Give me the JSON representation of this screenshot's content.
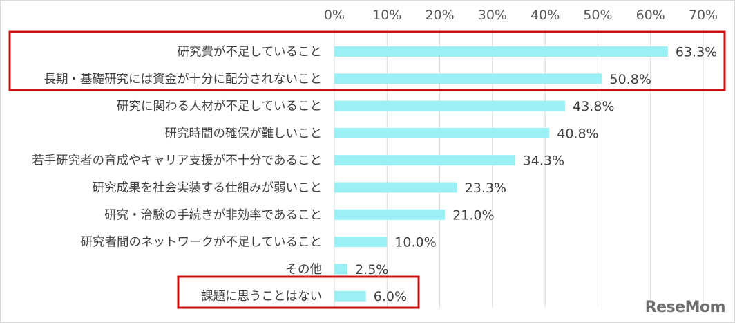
{
  "chart_data": {
    "type": "bar",
    "orientation": "horizontal",
    "categories": [
      "研究費が不足していること",
      "長期・基礎研究には資金が十分に配分されないこと",
      "研究に関わる人材が不足していること",
      "研究時間の確保が難しいこと",
      "若手研究者の育成やキャリア支援が不十分であること",
      "研究成果を社会実装する仕組みが弱いこと",
      "研究・治験の手続きが非効率であること",
      "研究者間のネットワークが不足していること",
      "その他",
      "課題に思うことはない"
    ],
    "values": [
      63.3,
      50.8,
      43.8,
      40.8,
      34.3,
      23.3,
      21.0,
      10.0,
      2.5,
      6.0
    ],
    "value_labels": [
      "63.3%",
      "50.8%",
      "43.8%",
      "40.8%",
      "34.3%",
      "23.3%",
      "21.0%",
      "10.0%",
      "2.5%",
      "6.0%"
    ],
    "xticks": [
      0,
      10,
      20,
      30,
      40,
      50,
      60,
      70
    ],
    "xtick_labels": [
      "0%",
      "10%",
      "20%",
      "30%",
      "40%",
      "50%",
      "60%",
      "70%"
    ],
    "xlim": [
      0,
      70
    ],
    "xaxis_position": "top",
    "grid": true,
    "title": "",
    "xlabel": "",
    "ylabel": "",
    "bar_color": "#9bf0f5",
    "highlight_color": "#cc1111",
    "highlight_groups": [
      [
        0,
        1
      ],
      [
        9
      ]
    ]
  },
  "watermark": "ReseMom"
}
